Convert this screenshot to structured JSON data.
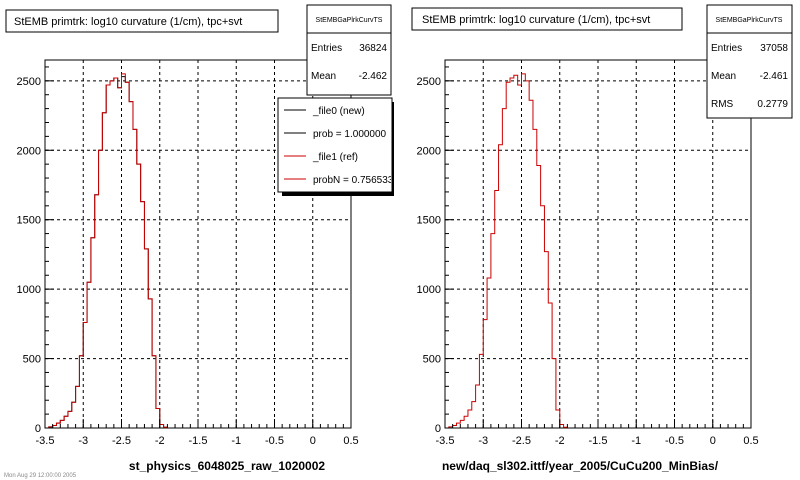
{
  "footer_text": "Mon Aug 29 12:00:00 2005",
  "chart_data": [
    {
      "type": "histogram",
      "title": "StEMB primtrk: log10 curvature (1/cm), tpc+svt",
      "xlabel": "st_physics_6048025_raw_1020002",
      "ylabel": "",
      "xlim": [
        -3.5,
        0.5
      ],
      "ylim": [
        0,
        2650
      ],
      "grid": true,
      "x_ticks": [
        "-3.5",
        "-3",
        "-2.5",
        "-2",
        "-1.5",
        "-1",
        "-0.5",
        "0",
        "0.5"
      ],
      "y_ticks": [
        "0",
        "500",
        "1000",
        "1500",
        "2000",
        "2500"
      ],
      "stats_box": {
        "name": "StEMBGaPlrkCurvTS",
        "rows": [
          {
            "label": "Entries",
            "value": "36824"
          },
          {
            "label": "Mean",
            "value": "-2.462"
          }
        ]
      },
      "legend": {
        "position": "top-right",
        "entries": [
          {
            "label": "_file0 (new)",
            "color": "#000000"
          },
          {
            "label": "prob = 1.000000",
            "color": "#000000"
          },
          {
            "label": "_file1 (ref)",
            "color": "#cc0000"
          },
          {
            "label": "probN = 0.756533",
            "color": "#cc0000"
          }
        ]
      },
      "series": [
        {
          "name": "_file0 (new)",
          "color": "#000000",
          "bin_low": -3.45,
          "bin_width": 0.05,
          "values": [
            8,
            18,
            35,
            55,
            85,
            120,
            185,
            300,
            520,
            760,
            1050,
            1370,
            1680,
            2000,
            2270,
            2470,
            2500,
            2520,
            2450,
            2530,
            2490,
            2350,
            2150,
            1900,
            1630,
            1290,
            930,
            520,
            140,
            25,
            5
          ]
        },
        {
          "name": "_file1 (ref)",
          "color": "#cc0000",
          "bin_low": -3.45,
          "bin_width": 0.05,
          "values": [
            8,
            18,
            35,
            55,
            85,
            120,
            185,
            300,
            520,
            760,
            1050,
            1370,
            1680,
            2000,
            2270,
            2470,
            2500,
            2520,
            2450,
            2550,
            2490,
            2350,
            2150,
            1900,
            1630,
            1290,
            930,
            520,
            140,
            25,
            5
          ]
        }
      ]
    },
    {
      "type": "histogram",
      "title": "StEMB primtrk: log10 curvature (1/cm), tpc+svt",
      "xlabel": "new/daq_sl302.ittf/year_2005/CuCu200_MinBias/",
      "ylabel": "",
      "xlim": [
        -3.5,
        0.5
      ],
      "ylim": [
        0,
        2650
      ],
      "grid": true,
      "x_ticks": [
        "-3.5",
        "-3",
        "-2.5",
        "-2",
        "-1.5",
        "-1",
        "-0.5",
        "0",
        "0.5"
      ],
      "y_ticks": [
        "0",
        "500",
        "1000",
        "1500",
        "2000",
        "2500"
      ],
      "stats_box": {
        "name": "StEMBGaPlrkCurvTS",
        "rows": [
          {
            "label": "Entries",
            "value": "37058"
          },
          {
            "label": "Mean",
            "value": "-2.461"
          },
          {
            "label": "RMS",
            "value": "0.2779"
          }
        ]
      },
      "series": [
        {
          "name": "",
          "color": "#cc0000",
          "bin_low": -3.45,
          "bin_width": 0.05,
          "values": [
            8,
            18,
            35,
            55,
            85,
            130,
            190,
            310,
            530,
            780,
            1080,
            1400,
            1710,
            2040,
            2300,
            2490,
            2520,
            2540,
            2470,
            2550,
            2500,
            2360,
            2150,
            1890,
            1600,
            1270,
            900,
            500,
            130,
            25,
            5
          ]
        }
      ]
    }
  ]
}
